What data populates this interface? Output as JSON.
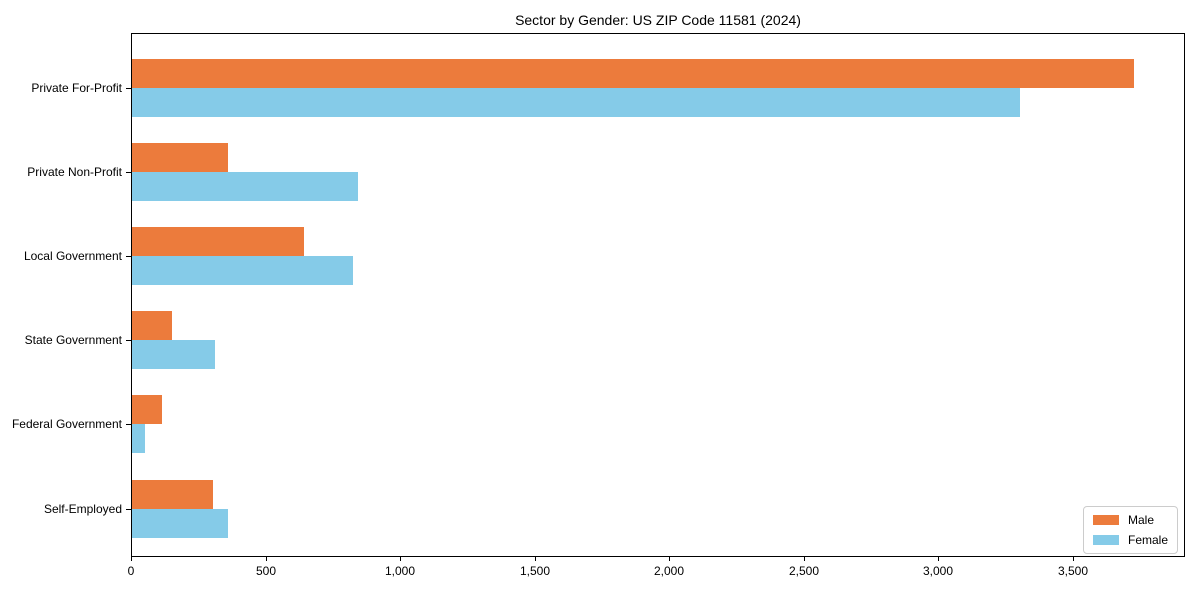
{
  "chart_data": {
    "type": "bar",
    "orientation": "horizontal",
    "title": "Sector by Gender: US ZIP Code 11581 (2024)",
    "categories": [
      "Private For-Profit",
      "Private Non-Profit",
      "Local Government",
      "State Government",
      "Federal Government",
      "Self-Employed"
    ],
    "series": [
      {
        "name": "Male",
        "color": "#EC7B3C",
        "values": [
          3725,
          355,
          640,
          150,
          110,
          300
        ]
      },
      {
        "name": "Female",
        "color": "#85CBE8",
        "values": [
          3300,
          840,
          820,
          310,
          50,
          355
        ]
      }
    ],
    "xlim": [
      0,
      3910
    ],
    "xticks": [
      0,
      500,
      1000,
      1500,
      2000,
      2500,
      3000,
      3500
    ],
    "xtick_labels": [
      "0",
      "500",
      "1,000",
      "1,500",
      "2,000",
      "2,500",
      "3,000",
      "3,500"
    ],
    "xlabel": "",
    "ylabel": "",
    "grid": false,
    "legend_position": "lower right"
  },
  "legend": {
    "items": [
      {
        "label": "Male",
        "color": "#EC7B3C"
      },
      {
        "label": "Female",
        "color": "#85CBE8"
      }
    ]
  }
}
